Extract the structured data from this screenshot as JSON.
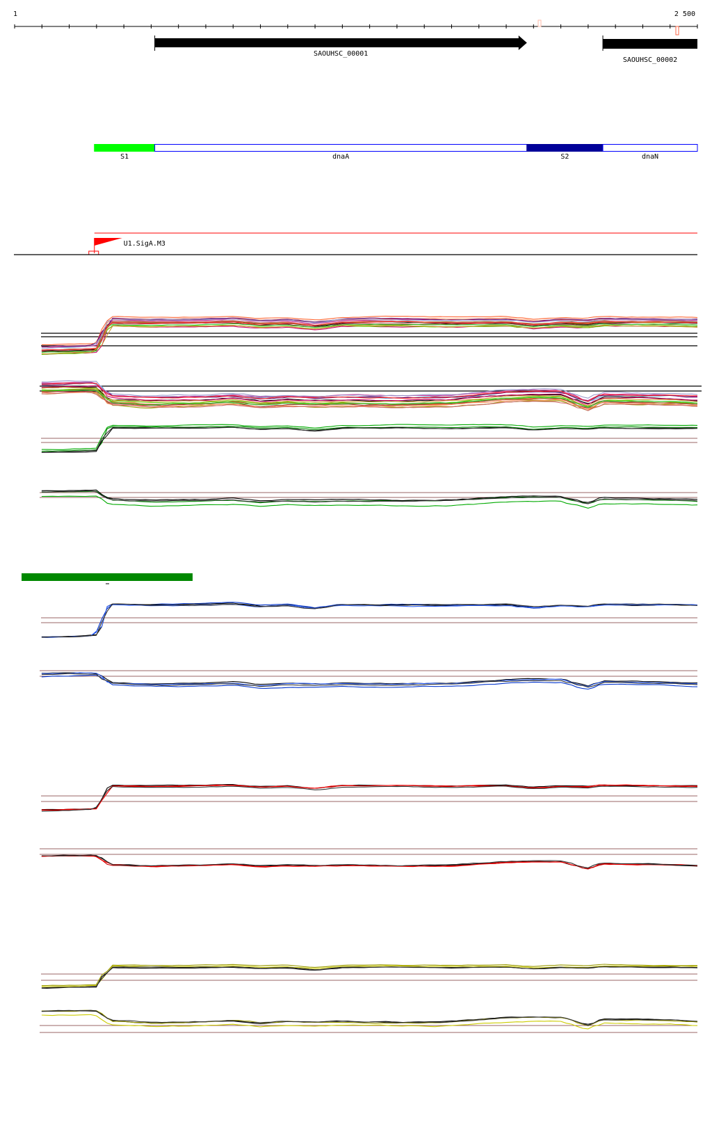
{
  "ruler": {
    "start_label": "1",
    "end_label": "2 500",
    "start": 1,
    "end": 2500
  },
  "genes": [
    {
      "name": "SAOUHSC_00001",
      "start": 514,
      "end": 1876,
      "strand": "+",
      "color": "#000000"
    },
    {
      "name": "SAOUHSC_00002",
      "start": 2154,
      "end": 2500,
      "strand": "+",
      "color": "#000000"
    }
  ],
  "regions": [
    {
      "name": "S1",
      "start": 293,
      "end": 514,
      "fill": "#00ff00"
    },
    {
      "name": "dnaA",
      "start": 514,
      "end": 1876,
      "fill": "#ffffff",
      "border": "#0000ff"
    },
    {
      "name": "S2",
      "start": 1876,
      "end": 2154,
      "fill": "#000099"
    },
    {
      "name": "dnaN",
      "start": 2154,
      "end": 2500,
      "fill": "#ffffff",
      "border": "#0000ff"
    }
  ],
  "promoter": {
    "name": "U1.SigA.M3",
    "position": 293,
    "color": "#ff0000"
  },
  "legend_bar": {
    "color": "#008800"
  },
  "chart_data": {
    "type": "line",
    "title": "",
    "x": [
      100,
      250,
      300,
      350,
      500,
      700,
      800,
      900,
      1000,
      1100,
      1200,
      1400,
      1600,
      1800,
      1900,
      2000,
      2100,
      2150,
      2200,
      2400,
      2500
    ],
    "xlim": [
      1,
      2500
    ],
    "profiles": {
      "rising": [
        0.05,
        0.08,
        0.1,
        0.95,
        0.93,
        0.95,
        0.97,
        0.9,
        0.93,
        0.84,
        0.94,
        0.95,
        0.93,
        0.95,
        0.87,
        0.93,
        0.9,
        0.96,
        0.95,
        0.94,
        0.93
      ],
      "flat": [
        0.8,
        0.82,
        0.82,
        0.55,
        0.5,
        0.52,
        0.55,
        0.48,
        0.52,
        0.5,
        0.52,
        0.5,
        0.52,
        0.62,
        0.64,
        0.64,
        0.42,
        0.58,
        0.57,
        0.55,
        0.52
      ]
    },
    "tracks": [
      {
        "profile": "rising",
        "colors": [
          "#ff6633",
          "#000000",
          "#999900",
          "#cc0066",
          "#66cc00",
          "#993333",
          "#6699cc",
          "#ff9966",
          "#cc3399",
          "#996633",
          "#33cc33",
          "#cc6666",
          "#660066",
          "#ff3333",
          "#9999cc",
          "#cc9933"
        ]
      },
      {
        "profile": "flat",
        "colors": [
          "#ff6633",
          "#000000",
          "#999900",
          "#cc0066",
          "#66cc00",
          "#993333",
          "#6699cc",
          "#ff9966",
          "#cc3399",
          "#996633",
          "#33cc33",
          "#cc6666",
          "#660066",
          "#ff3333",
          "#9999cc",
          "#cc9933"
        ]
      },
      {
        "profile": "rising",
        "colors": [
          "#008800",
          "#000000",
          "#00aa00",
          "#333333"
        ]
      },
      {
        "profile": "flat",
        "colors": [
          "#008800",
          "#000000",
          "#00aa00",
          "#333333"
        ]
      },
      {
        "profile": "rising",
        "colors": [
          "#0033cc",
          "#000000",
          "#3366ff",
          "#333333"
        ]
      },
      {
        "profile": "flat",
        "colors": [
          "#0033cc",
          "#000000",
          "#3366ff",
          "#333333"
        ]
      },
      {
        "profile": "rising",
        "colors": [
          "#cc0000",
          "#000000",
          "#ff0000",
          "#333333"
        ]
      },
      {
        "profile": "flat",
        "colors": [
          "#cc0000",
          "#000000",
          "#ff0000",
          "#333333"
        ]
      },
      {
        "profile": "rising",
        "colors": [
          "#cccc00",
          "#000000",
          "#999900",
          "#333333"
        ]
      },
      {
        "profile": "flat",
        "colors": [
          "#cccc00",
          "#000000",
          "#999900",
          "#333333"
        ]
      }
    ],
    "threshold_color": "#996666"
  }
}
